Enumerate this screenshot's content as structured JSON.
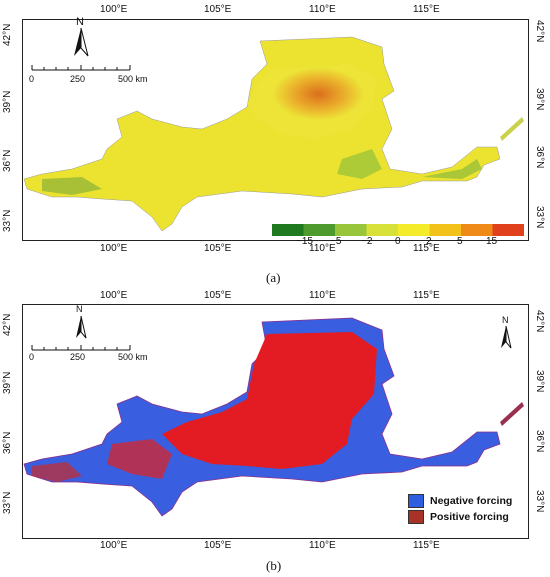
{
  "top_axis_labels": [
    "100°E",
    "105°E",
    "110°E",
    "115°E"
  ],
  "bottom_axis_labels": [
    "100°E",
    "105°E",
    "110°E",
    "115°E"
  ],
  "lat_labels": [
    "42°N",
    "39°N",
    "36°N",
    "33°N"
  ],
  "north_label": "N",
  "scale": {
    "ticks": [
      "0",
      "250",
      "500 km"
    ]
  },
  "panel_a": {
    "label": "(a)",
    "colorbar_ticks": [
      "−15",
      "−5",
      "−2",
      "0",
      "2",
      "5",
      "15"
    ],
    "colorbar_colors": [
      "#1f7a1f",
      "#4e9a2e",
      "#98c53a",
      "#d8e13a",
      "#f4ec2a",
      "#f3c21a",
      "#ef8a18",
      "#e0401c"
    ]
  },
  "panel_b": {
    "label": "(b)",
    "legend": [
      {
        "label": "Negative forcing",
        "color": "#2f5fe0"
      },
      {
        "label": "Positive forcing",
        "color": "#a83228"
      }
    ]
  }
}
